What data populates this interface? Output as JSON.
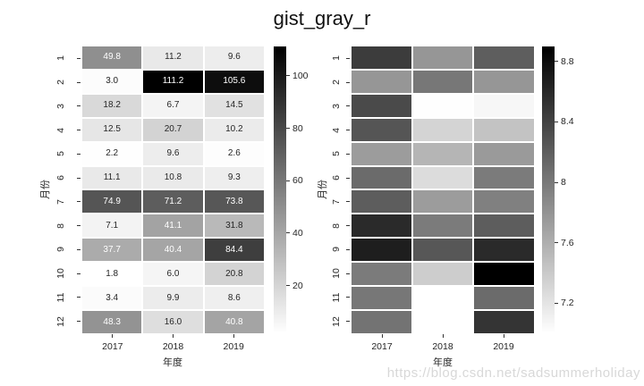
{
  "figure": {
    "title": "gist_gray_r",
    "watermark": "https://blog.csdn.net/sadsummerholiday"
  },
  "chart_data": [
    {
      "type": "heatmap",
      "panel": "left",
      "title": "gist_gray_r",
      "xlabel": "年度",
      "ylabel": "月份",
      "columns": [
        "2017",
        "2018",
        "2019"
      ],
      "rows": [
        "1",
        "2",
        "3",
        "4",
        "5",
        "6",
        "7",
        "8",
        "9",
        "10",
        "11",
        "12"
      ],
      "values": [
        [
          49.8,
          11.2,
          9.6
        ],
        [
          3.0,
          111.2,
          105.6
        ],
        [
          18.2,
          6.7,
          14.5
        ],
        [
          12.5,
          20.7,
          10.2
        ],
        [
          2.2,
          9.6,
          2.6
        ],
        [
          11.1,
          10.8,
          9.3
        ],
        [
          74.9,
          71.2,
          73.8
        ],
        [
          7.1,
          41.1,
          31.8
        ],
        [
          37.7,
          40.4,
          84.4
        ],
        [
          1.8,
          6.0,
          20.8
        ],
        [
          3.4,
          9.9,
          8.6
        ],
        [
          48.3,
          16.0,
          40.8
        ]
      ],
      "annotated": true,
      "annotation_decimals": 1,
      "colormap": "gist_gray_r",
      "vmin": 1.8,
      "vmax": 111.2,
      "colorbar_ticks": [
        20,
        40,
        60,
        80,
        100
      ],
      "grid": false,
      "legend_position": "colorbar-right"
    },
    {
      "type": "heatmap",
      "panel": "right",
      "title": "gist_gray_r",
      "xlabel": "年度",
      "ylabel": "月份",
      "columns": [
        "2017",
        "2018",
        "2019"
      ],
      "rows": [
        "1",
        "2",
        "3",
        "4",
        "5",
        "6",
        "7",
        "8",
        "9",
        "10",
        "11",
        "12"
      ],
      "values": [
        [
          8.45,
          7.78,
          8.2
        ],
        [
          7.78,
          8.01,
          7.78
        ],
        [
          8.35,
          7.01,
          7.06
        ],
        [
          8.27,
          7.32,
          7.45
        ],
        [
          7.74,
          7.55,
          7.75
        ],
        [
          8.1,
          7.26,
          7.98
        ],
        [
          8.21,
          7.74,
          7.95
        ],
        [
          8.59,
          7.98,
          8.21
        ],
        [
          8.68,
          8.25,
          8.59
        ],
        [
          7.98,
          7.37,
          8.9
        ],
        [
          8.01,
          7.0,
          8.1
        ],
        [
          8.04,
          7.0,
          8.51
        ]
      ],
      "annotated": false,
      "annotation_decimals": 1,
      "colormap": "gist_gray_r",
      "vmin": 7.0,
      "vmax": 8.9,
      "colorbar_ticks": [
        7.2,
        7.6,
        8.0,
        8.4,
        8.8
      ],
      "grid": false,
      "legend_position": "colorbar-right"
    }
  ],
  "colors": {
    "annotation_light": "#ffffff",
    "annotation_dark": "#262626",
    "tick": "#333333",
    "title_text": "#111111",
    "watermark_text": "#d8d8d8"
  }
}
